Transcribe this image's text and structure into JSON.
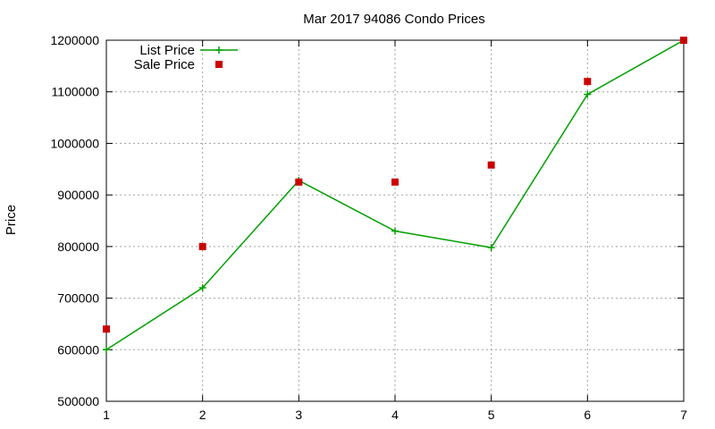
{
  "chart_data": {
    "type": "line",
    "title": "Mar 2017 94086 Condo Prices",
    "xlabel": "",
    "ylabel": "Price",
    "xlim": [
      1,
      7
    ],
    "ylim": [
      500000,
      1200000
    ],
    "x_ticks": [
      "1",
      "2",
      "3",
      "4",
      "5",
      "6",
      "7"
    ],
    "y_ticks": [
      "500000",
      "600000",
      "700000",
      "800000",
      "900000",
      "1000000",
      "1100000",
      "1200000"
    ],
    "grid": true,
    "legend_position": "top-left",
    "series": [
      {
        "name": "List Price",
        "style": "line-with-plus-markers",
        "color": "#00a000",
        "x": [
          1,
          2,
          3,
          4,
          5,
          6,
          7
        ],
        "y": [
          600000,
          720000,
          928000,
          830000,
          798000,
          1095000,
          1200000
        ]
      },
      {
        "name": "Sale Price",
        "style": "square-markers",
        "color": "#cc0000",
        "x": [
          1,
          2,
          3,
          4,
          5,
          6,
          7
        ],
        "y": [
          640000,
          800000,
          925000,
          925000,
          958000,
          1120000,
          1200000
        ]
      }
    ]
  }
}
